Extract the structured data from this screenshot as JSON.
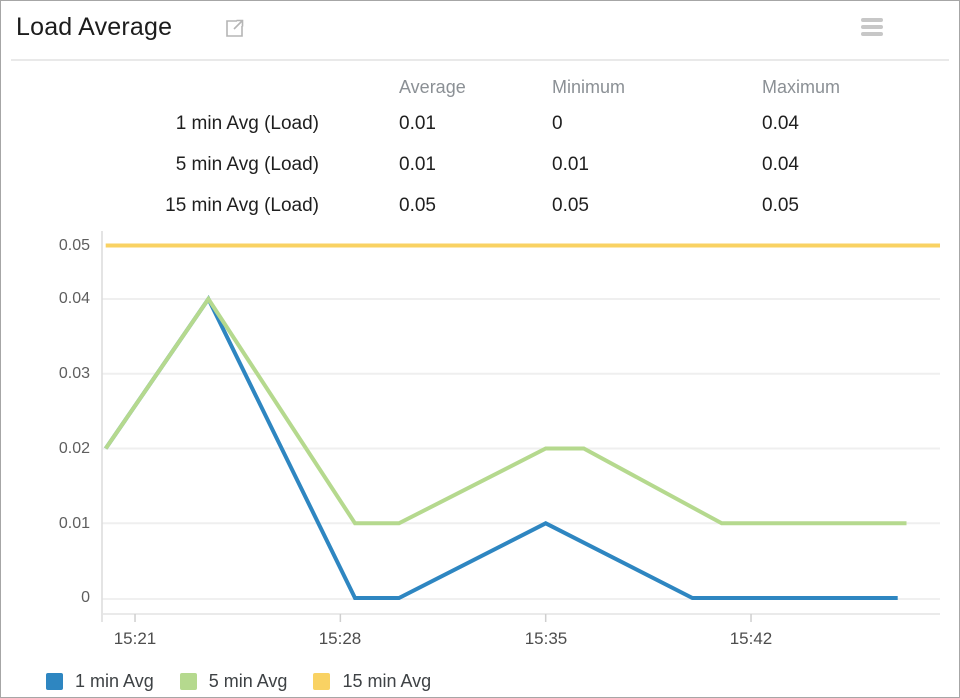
{
  "header": {
    "title": "Load Average",
    "open_icon": "external-link",
    "menu_icon": "hamburger-menu"
  },
  "summary_table": {
    "columns": [
      "Average",
      "Minimum",
      "Maximum"
    ],
    "rows": [
      {
        "label": "1 min Avg (Load)",
        "average": "0.01",
        "minimum": "0",
        "maximum": "0.04"
      },
      {
        "label": "5 min Avg (Load)",
        "average": "0.01",
        "minimum": "0.01",
        "maximum": "0.04"
      },
      {
        "label": "15 min Avg (Load)",
        "average": "0.05",
        "minimum": "0.05",
        "maximum": "0.05"
      }
    ]
  },
  "chart_data": {
    "type": "line",
    "title": "Load Average",
    "xlabel": "",
    "ylabel": "",
    "ylim": [
      0,
      0.05
    ],
    "grid": true,
    "legend_position": "bottom",
    "x_start_time": "15:20",
    "x_ticks": [
      {
        "label": "15:21",
        "t": 1
      },
      {
        "label": "15:28",
        "t": 8
      },
      {
        "label": "15:35",
        "t": 15
      },
      {
        "label": "15:42",
        "t": 22
      }
    ],
    "y_ticks": [
      {
        "label": "0.05",
        "v": 0.05
      },
      {
        "label": "0.04",
        "v": 0.04
      },
      {
        "label": "0.03",
        "v": 0.03
      },
      {
        "label": "0.02",
        "v": 0.02
      },
      {
        "label": "0.01",
        "v": 0.01
      },
      {
        "label": "0",
        "v": 0
      }
    ],
    "series": [
      {
        "name": "1 min Avg",
        "color": "#2e86c1",
        "points": [
          [
            0,
            0.02
          ],
          [
            3.5,
            0.04
          ],
          [
            8.5,
            0
          ],
          [
            10,
            0
          ],
          [
            15,
            0.01
          ],
          [
            20,
            0
          ],
          [
            27,
            0
          ]
        ]
      },
      {
        "name": "5 min Avg",
        "color": "#b5d98e",
        "points": [
          [
            0,
            0.02
          ],
          [
            3.5,
            0.04
          ],
          [
            8.5,
            0.01
          ],
          [
            10,
            0.01
          ],
          [
            15,
            0.02
          ],
          [
            16.3,
            0.02
          ],
          [
            21,
            0.01
          ],
          [
            27.3,
            0.01
          ]
        ]
      },
      {
        "name": "15 min Avg",
        "color": "#f9d263",
        "points": [
          [
            0,
            0.05
          ],
          [
            28.5,
            0.05
          ]
        ]
      }
    ]
  },
  "legend": {
    "items": [
      {
        "label": "1 min Avg",
        "color": "#2e86c1"
      },
      {
        "label": "5 min Avg",
        "color": "#b5d98e"
      },
      {
        "label": "15 min Avg",
        "color": "#f9d263"
      }
    ]
  }
}
